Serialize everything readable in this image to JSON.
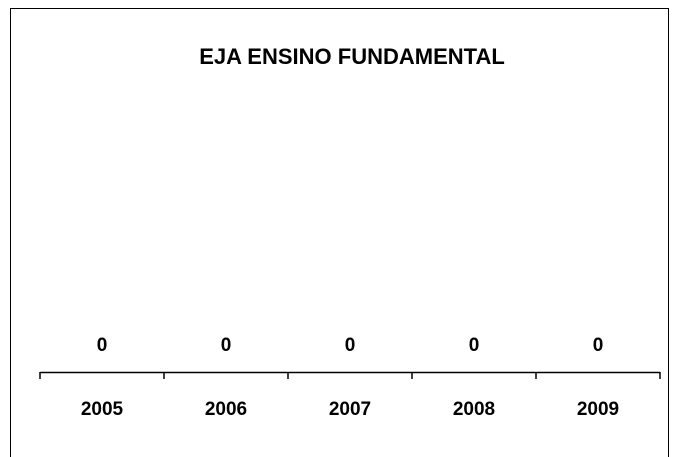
{
  "chart_data": {
    "type": "bar",
    "title": "EJA ENSINO FUNDAMENTAL",
    "categories": [
      "2005",
      "2006",
      "2007",
      "2008",
      "2009"
    ],
    "values": [
      0,
      0,
      0,
      0,
      0
    ],
    "color": "#4472c4"
  }
}
